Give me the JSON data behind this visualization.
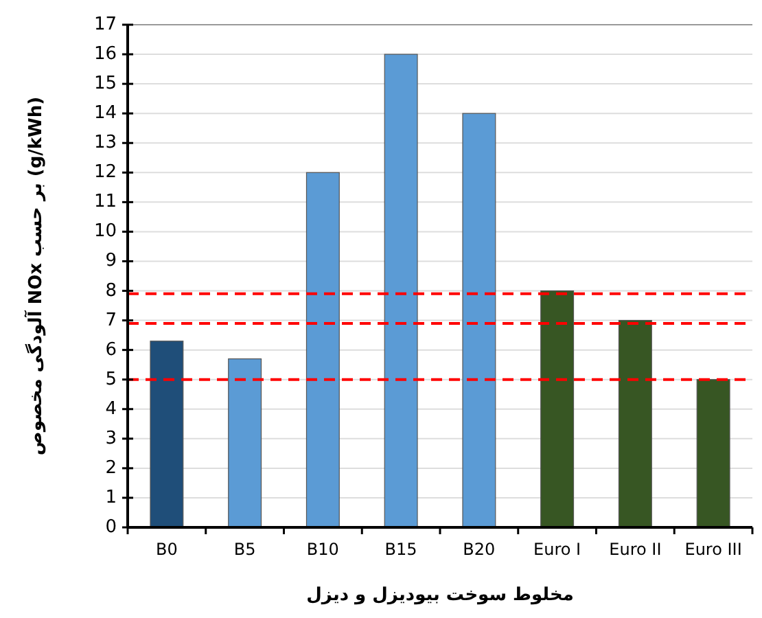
{
  "chart_data": {
    "type": "bar",
    "xlabel": "مخلوط سوخت بیودیزل و دیزل",
    "ylabel": "آلودگی مخصوص NOx بر حسب (g/kWh)",
    "categories": [
      "B0",
      "B5",
      "B10",
      "B15",
      "B20",
      "Euro I",
      "Euro II",
      "Euro III"
    ],
    "values": [
      6.3,
      5.7,
      12,
      16,
      14,
      8,
      7,
      5
    ],
    "colors": [
      "#1f4e79",
      "#5b9bd5",
      "#5b9bd5",
      "#5b9bd5",
      "#5b9bd5",
      "#375623",
      "#375623",
      "#375623"
    ],
    "ylim": [
      0,
      17
    ],
    "yticks": [
      0,
      1,
      2,
      3,
      4,
      5,
      6,
      7,
      8,
      9,
      10,
      11,
      12,
      13,
      14,
      15,
      16,
      17
    ],
    "grid": "y",
    "ref_lines": [
      {
        "axis": "y",
        "value": 7.9,
        "color": "#ff0000",
        "line_style": "dashed"
      },
      {
        "axis": "y",
        "value": 6.9,
        "color": "#ff0000",
        "line_style": "dashed"
      },
      {
        "axis": "y",
        "value": 5,
        "color": "#ff0000",
        "line_style": "dashed"
      }
    ]
  }
}
